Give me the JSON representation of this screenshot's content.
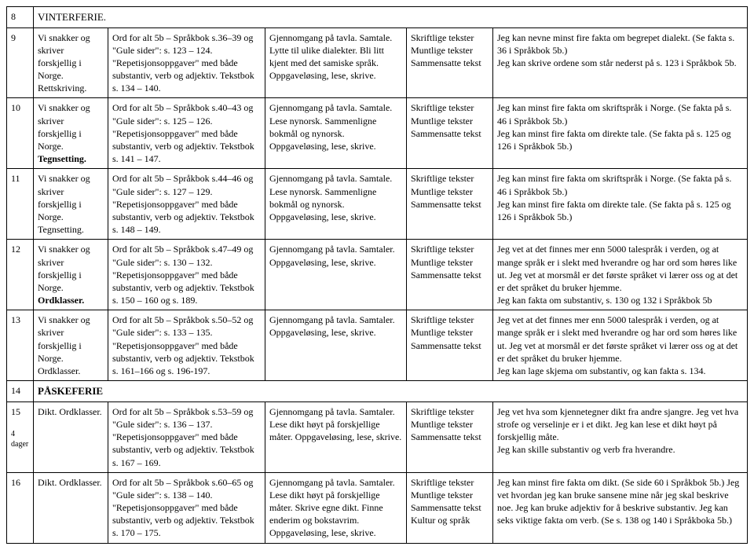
{
  "rows": [
    {
      "num": "8",
      "ferie": "VINTERFERIE."
    },
    {
      "num": "9",
      "topic": "Vi snakker og skriver forskjellig i Norge. Rettskriving.",
      "work": "Ord for alt 5b – Språkbok s.36–39 og \"Gule sider\": s. 123 – 124. \"Repetisjonsoppgaver\" med både substantiv, verb og adjektiv. Tekstbok s. 134 – 140.",
      "method": "Gjennomgang på tavla. Samtale. Lytte til ulike dialekter. Bli litt kjent med det samiske språk. Oppgaveløsing, lese, skrive.",
      "type": "Skriftlige tekster\nMuntlige tekster\nSammensatte tekst",
      "goal": "Jeg kan nevne minst fire fakta om begrepet dialekt. (Se fakta s. 36 i Språkbok 5b.)\nJeg kan skrive ordene som står nederst på s. 123 i Språkbok 5b."
    },
    {
      "num": "10",
      "topic_pre": "Vi snakker og skriver forskjellig i Norge.",
      "topic_bold": "Tegnsetting.",
      "work": "Ord for alt 5b – Språkbok s.40–43 og \"Gule sider\": s. 125 – 126. \"Repetisjonsoppgaver\" med både substantiv, verb og adjektiv. Tekstbok s. 141 – 147.",
      "method": "Gjennomgang på tavla. Samtale. Lese nynorsk. Sammenligne bokmål og nynorsk. Oppgaveløsing, lese, skrive.",
      "type": "Skriftlige tekster\nMuntlige tekster\nSammensatte tekst",
      "goal": "Jeg kan minst fire fakta om skriftspråk i Norge. (Se fakta på s. 46 i Språkbok 5b.)\nJeg kan minst fire fakta om direkte tale. (Se fakta på s. 125 og 126 i Språkbok 5b.)"
    },
    {
      "num": "11",
      "topic": "Vi snakker og skriver forskjellig i Norge. Tegnsetting.",
      "work": "Ord for alt 5b – Språkbok s.44–46 og \"Gule sider\": s. 127 – 129. \"Repetisjonsoppgaver\" med både substantiv, verb og adjektiv. Tekstbok s. 148 – 149.",
      "method": "Gjennomgang på tavla. Samtale. Lese nynorsk. Sammenligne bokmål og nynorsk. Oppgaveløsing, lese, skrive.",
      "type": "Skriftlige tekster\nMuntlige tekster\nSammensatte tekst",
      "goal": "Jeg kan minst fire fakta om skriftspråk i Norge. (Se fakta på s. 46 i Språkbok 5b.)\nJeg kan minst fire fakta om direkte tale. (Se fakta på s. 125 og 126 i Språkbok 5b.)"
    },
    {
      "num": "12",
      "topic_pre": "Vi snakker og skriver forskjellig i Norge.",
      "topic_bold": "Ordklasser.",
      "work": "Ord for alt 5b – Språkbok s.47–49 og \"Gule sider\": s. 130 – 132. \"Repetisjonsoppgaver\" med både substantiv, verb og adjektiv. Tekstbok s. 150 – 160 og s. 189.",
      "method": "Gjennomgang på tavla. Samtaler. Oppgaveløsing, lese, skrive.",
      "type": "Skriftlige tekster\nMuntlige tekster\nSammensatte tekst",
      "goal": "Jeg vet at det finnes mer enn 5000 talespråk i verden, og at mange språk er i slekt med hverandre og har ord som høres like ut. Jeg vet at morsmål er det første språket vi lærer oss og at det er det språket du bruker hjemme.\nJeg kan fakta om substantiv, s. 130 og 132 i Språkbok 5b"
    },
    {
      "num": "13",
      "topic": "Vi snakker og skriver forskjellig i Norge. Ordklasser.",
      "work": "Ord for alt 5b – Språkbok s.50–52 og \"Gule sider\": s. 133 – 135. \"Repetisjonsoppgaver\" med både substantiv, verb og adjektiv. Tekstbok s. 161–166 og s. 196-197.",
      "method": "Gjennomgang på tavla. Samtaler. Oppgaveløsing, lese, skrive.",
      "type": "Skriftlige tekster\nMuntlige tekster\nSammensatte tekst",
      "goal": "Jeg vet at det finnes mer enn 5000 talespråk i verden, og at mange språk er i slekt med hverandre og har ord som høres like ut. Jeg vet at morsmål er det første språket vi lærer oss og at det er det språket du bruker hjemme.\nJeg kan lage skjema om substantiv, og kan fakta s. 134."
    },
    {
      "num": "14",
      "ferie": "PÅSKEFERIE",
      "ferie_bold": true
    },
    {
      "num": "15",
      "num_sub": "4 dager",
      "topic": "Dikt. Ordklasser.",
      "work": "Ord for alt 5b – Språkbok s.53–59 og \"Gule sider\": s. 136 – 137. \"Repetisjonsoppgaver\" med både substantiv, verb og adjektiv. Tekstbok s. 167 – 169.",
      "method": "Gjennomgang på tavla. Samtaler. Lese dikt høyt på forskjellige måter. Oppgaveløsing, lese, skrive.",
      "type": "Skriftlige tekster\nMuntlige tekster\nSammensatte tekst",
      "goal": "Jeg vet hva som kjennetegner dikt fra andre sjangre. Jeg vet hva strofe og verselinje er i et dikt. Jeg kan lese et dikt høyt på forskjellig måte.\nJeg kan skille substantiv og verb fra hverandre."
    },
    {
      "num": "16",
      "topic": "Dikt. Ordklasser.",
      "work": "Ord for alt 5b – Språkbok s.60–65 og \"Gule sider\": s. 138 – 140. \"Repetisjonsoppgaver\" med både substantiv, verb og adjektiv. Tekstbok s. 170 – 175.",
      "method": "Gjennomgang på tavla. Samtaler. Lese dikt høyt på forskjellige måter. Skrive egne dikt. Finne enderim og bokstavrim. Oppgaveløsing, lese, skrive.",
      "type": "Skriftlige tekster\nMuntlige tekster\nSammensatte tekst\nKultur og språk",
      "goal": "Jeg kan minst fire fakta om dikt. (Se side 60 i Språkbok 5b.) Jeg vet hvordan jeg kan bruke sansene mine når jeg skal beskrive noe. Jeg kan bruke adjektiv for å beskrive substantiv. Jeg kan seks viktige fakta om verb. (Se s. 138 og 140 i Språkboka 5b.)"
    }
  ]
}
